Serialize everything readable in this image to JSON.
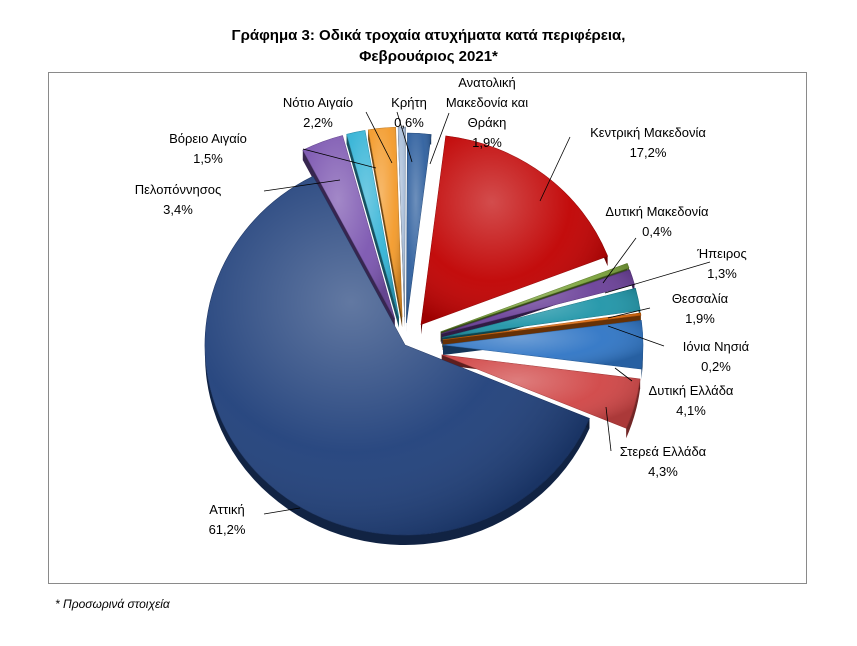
{
  "title_line1": "Γράφημα 3: Οδικά τροχαία ατυχήματα κατά περιφέρεια,",
  "title_line2": "Φεβρουάριος 2021*",
  "footnote": "* Προσωρινά στοιχεία",
  "chart_data": {
    "type": "pie",
    "title": "Γράφημα 3: Οδικά τροχαία ατυχήματα κατά περιφέρεια, Φεβρουάριος 2021*",
    "unit": "%",
    "slices": [
      {
        "name": "Ανατολική Μακεδονία και Θράκη",
        "label_lines": [
          "Ανατολική",
          "Μακεδονία και",
          "Θράκη"
        ],
        "value": 1.9,
        "value_label": "1,9%",
        "color": "#2e5f9e"
      },
      {
        "name": "Κεντρική Μακεδονία",
        "label_lines": [
          "Κεντρική Μακεδονία"
        ],
        "value": 17.2,
        "value_label": "17,2%",
        "color": "#c00000"
      },
      {
        "name": "Δυτική Μακεδονία",
        "label_lines": [
          "Δυτική Μακεδονία"
        ],
        "value": 0.4,
        "value_label": "0,4%",
        "color": "#7aa23a"
      },
      {
        "name": "Ήπειρος",
        "label_lines": [
          "Ήπειρος"
        ],
        "value": 1.3,
        "value_label": "1,3%",
        "color": "#6a3f98"
      },
      {
        "name": "Θεσσαλία",
        "label_lines": [
          "Θεσσαλία"
        ],
        "value": 1.9,
        "value_label": "1,9%",
        "color": "#1f95a8"
      },
      {
        "name": "Ιόνια Νησιά",
        "label_lines": [
          "Ιόνια Νησιά"
        ],
        "value": 0.2,
        "value_label": "0,2%",
        "color": "#e46c0a"
      },
      {
        "name": "Δυτική Ελλάδα",
        "label_lines": [
          "Δυτική Ελλάδα"
        ],
        "value": 4.1,
        "value_label": "4,1%",
        "color": "#2f75c5"
      },
      {
        "name": "Στερεά Ελλάδα",
        "label_lines": [
          "Στερεά Ελλάδα"
        ],
        "value": 4.3,
        "value_label": "4,3%",
        "color": "#d04545"
      },
      {
        "name": "Αττική",
        "label_lines": [
          "Αττική"
        ],
        "value": 61.2,
        "value_label": "61,2%",
        "color": "#1f3f7a"
      },
      {
        "name": "Πελοπόννησος",
        "label_lines": [
          "Πελοπόννησος"
        ],
        "value": 3.4,
        "value_label": "3,4%",
        "color": "#7b55b0"
      },
      {
        "name": "Βόρειο Αιγαίο",
        "label_lines": [
          "Βόρειο Αιγαίο"
        ],
        "value": 1.5,
        "value_label": "1,5%",
        "color": "#33b3d6"
      },
      {
        "name": "Νότιο Αιγαίο",
        "label_lines": [
          "Νότιο Αιγαίο"
        ],
        "value": 2.2,
        "value_label": "2,2%",
        "color": "#f39a2a"
      },
      {
        "name": "Κρήτη",
        "label_lines": [
          "Κρήτη"
        ],
        "value": 0.6,
        "value_label": "0,6%",
        "color": "#a8bdd8"
      }
    ]
  }
}
